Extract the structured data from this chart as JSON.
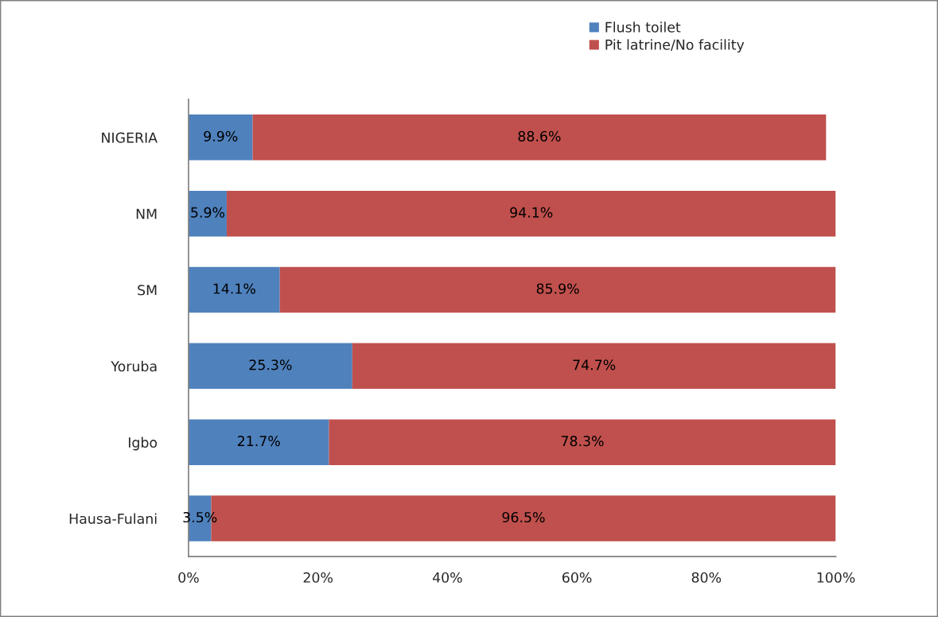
{
  "chart_data": {
    "type": "bar",
    "orientation": "horizontal",
    "stacked": true,
    "categories": [
      "NIGERIA",
      "NM",
      "SM",
      "Yoruba",
      "Igbo",
      "Hausa-Fulani"
    ],
    "series": [
      {
        "name": "Flush toilet",
        "color": "#4f81bd",
        "values": [
          9.9,
          5.9,
          14.1,
          25.3,
          21.7,
          3.5
        ],
        "value_labels": [
          "9.9%",
          "5.9%",
          "14.1%",
          "25.3%",
          "21.7%",
          "3.5%"
        ]
      },
      {
        "name": "Pit latrine/No facility",
        "color": "#c0504d",
        "values": [
          88.6,
          94.1,
          85.9,
          74.7,
          78.3,
          96.5
        ],
        "value_labels": [
          "88.6%",
          "94.1%",
          "85.9%",
          "74.7%",
          "78.3%",
          "96.5%"
        ]
      }
    ],
    "xlim": [
      0,
      100
    ],
    "xticks": [
      {
        "value": 0,
        "label": "0%"
      },
      {
        "value": 20,
        "label": "20%"
      },
      {
        "value": 40,
        "label": "40%"
      },
      {
        "value": 60,
        "label": "60%"
      },
      {
        "value": 80,
        "label": "80%"
      },
      {
        "value": 100,
        "label": "100%"
      }
    ],
    "legend": "top",
    "grid": false
  }
}
